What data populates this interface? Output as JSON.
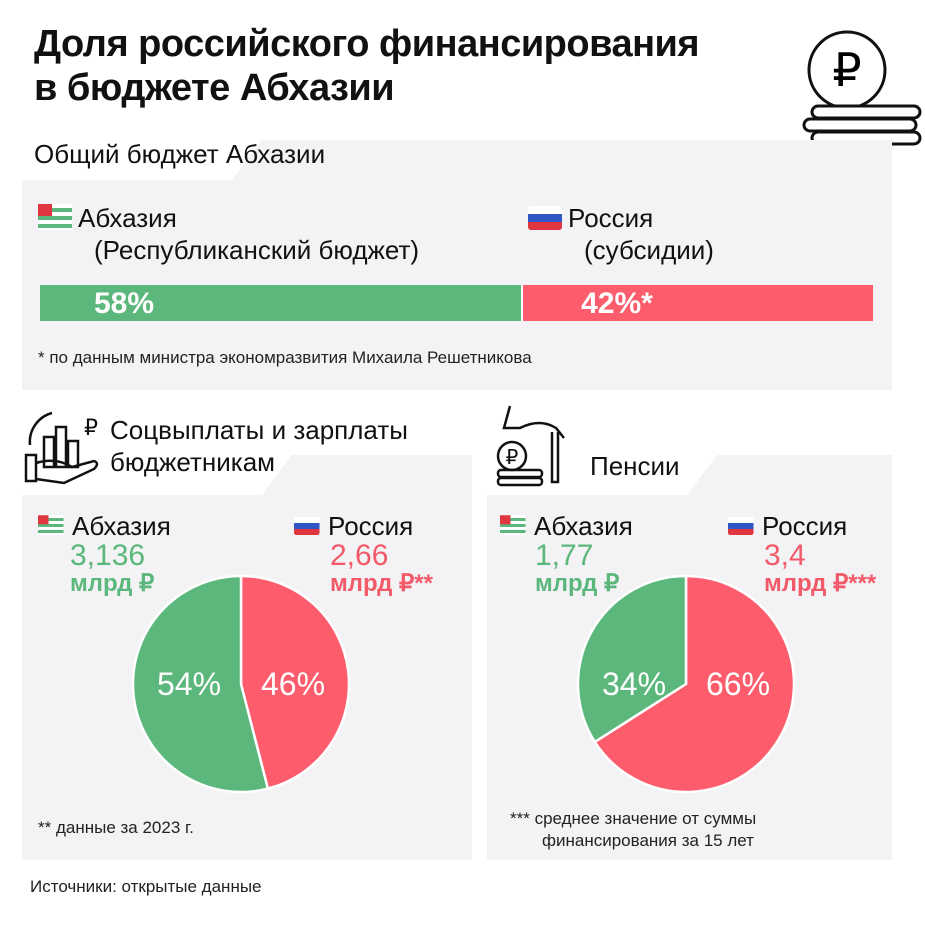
{
  "title_lines": [
    "Доля российского финансирования",
    "в бюджете Абхазии"
  ],
  "colors": {
    "abkhazia": "#5bb77b",
    "russia": "#fd5c6c",
    "panel": "#f3f3f5"
  },
  "icons": [
    "ruble-coin-stack-icon",
    "hand-chart-ruble-icon",
    "hand-cane-coins-icon",
    "abkhazia-flag-icon",
    "russia-flag-icon"
  ],
  "total": {
    "heading": "Общий бюджет Абхазии",
    "abkhazia_label": "Абхазия",
    "abkhazia_sub": "(Республиканский бюджет)",
    "russia_label": "Россия",
    "russia_sub": "(субсидии)",
    "footnote": "* по данным министра экономразвития Михаила Решетникова"
  },
  "social": {
    "heading_lines": [
      "Соцвыплаты и зарплаты",
      "бюджетникам"
    ],
    "abkhazia_label": "Абхазия",
    "abkhazia_value": "3,136",
    "abkhazia_unit": "млрд ₽",
    "russia_label": "Россия",
    "russia_value": "2,66",
    "russia_unit": "млрд ₽**",
    "footnote": "** данные за 2023 г."
  },
  "pensions": {
    "heading": "Пенсии",
    "abkhazia_label": "Абхазия",
    "abkhazia_value": "1,77",
    "abkhazia_unit": "млрд ₽",
    "russia_label": "Россия",
    "russia_value": "3,4",
    "russia_unit": "млрд ₽***",
    "footnote_lines": [
      "*** среднее значение от суммы",
      "финансирования за 15 лет"
    ]
  },
  "source": "Источники: открытые данные",
  "chart_data": [
    {
      "type": "bar",
      "stacked": true,
      "orientation": "horizontal",
      "categories": [
        "Абхазия",
        "Россия"
      ],
      "values": [
        58,
        42
      ],
      "labels": [
        "58%",
        "42%*"
      ]
    },
    {
      "type": "pie",
      "categories": [
        "Абхазия",
        "Россия"
      ],
      "values": [
        54,
        46
      ],
      "labels": [
        "54%",
        "46%"
      ]
    },
    {
      "type": "pie",
      "categories": [
        "Абхазия",
        "Россия"
      ],
      "values": [
        34,
        66
      ],
      "labels": [
        "34%",
        "66%"
      ]
    }
  ]
}
